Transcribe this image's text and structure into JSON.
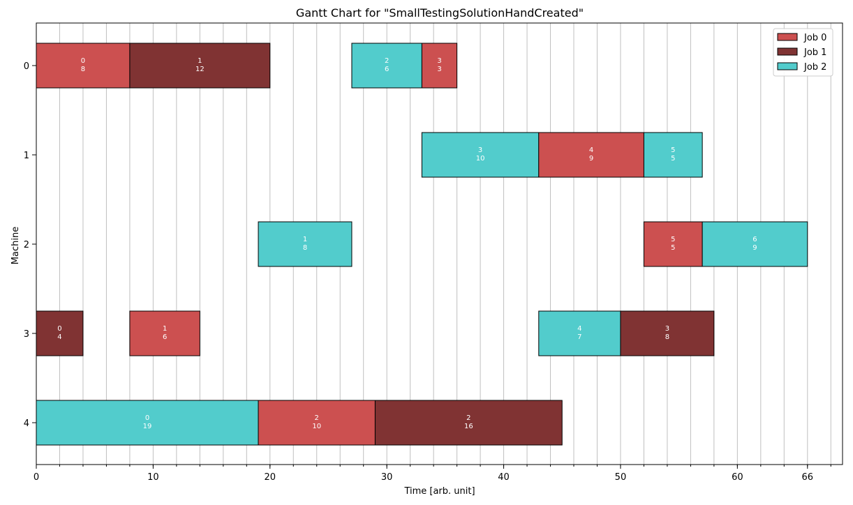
{
  "chart_data": {
    "type": "gantt",
    "title": "Gantt Chart for \"SmallTestingSolutionHandCreated\"",
    "xlabel": "Time [arb. unit]",
    "ylabel": "Machine",
    "xlim": [
      0,
      69
    ],
    "x_ticks": [
      0,
      10,
      20,
      30,
      40,
      50,
      60,
      66
    ],
    "x_minor_step": 2,
    "machines": [
      0,
      1,
      2,
      3,
      4
    ],
    "grid": "vertical",
    "legend_position": "top-right",
    "series": [
      {
        "name": "Job 0",
        "color": "#cc5050"
      },
      {
        "name": "Job 1",
        "color": "#803333"
      },
      {
        "name": "Job 2",
        "color": "#52cccc"
      }
    ],
    "tasks": [
      {
        "machine": 0,
        "job": 0,
        "start": 0,
        "duration": 8,
        "op": 0
      },
      {
        "machine": 0,
        "job": 1,
        "start": 8,
        "duration": 12,
        "op": 1
      },
      {
        "machine": 0,
        "job": 2,
        "start": 27,
        "duration": 6,
        "op": 2
      },
      {
        "machine": 0,
        "job": 0,
        "start": 33,
        "duration": 3,
        "op": 3
      },
      {
        "machine": 1,
        "job": 2,
        "start": 33,
        "duration": 10,
        "op": 3
      },
      {
        "machine": 1,
        "job": 0,
        "start": 43,
        "duration": 9,
        "op": 4
      },
      {
        "machine": 1,
        "job": 2,
        "start": 52,
        "duration": 5,
        "op": 5
      },
      {
        "machine": 2,
        "job": 2,
        "start": 19,
        "duration": 8,
        "op": 1
      },
      {
        "machine": 2,
        "job": 0,
        "start": 52,
        "duration": 5,
        "op": 5
      },
      {
        "machine": 2,
        "job": 2,
        "start": 57,
        "duration": 9,
        "op": 6
      },
      {
        "machine": 3,
        "job": 1,
        "start": 0,
        "duration": 4,
        "op": 0
      },
      {
        "machine": 3,
        "job": 0,
        "start": 8,
        "duration": 6,
        "op": 1
      },
      {
        "machine": 3,
        "job": 2,
        "start": 43,
        "duration": 7,
        "op": 4
      },
      {
        "machine": 3,
        "job": 1,
        "start": 50,
        "duration": 8,
        "op": 3
      },
      {
        "machine": 4,
        "job": 2,
        "start": 0,
        "duration": 19,
        "op": 0
      },
      {
        "machine": 4,
        "job": 0,
        "start": 19,
        "duration": 10,
        "op": 2
      },
      {
        "machine": 4,
        "job": 1,
        "start": 29,
        "duration": 16,
        "op": 2
      }
    ]
  }
}
